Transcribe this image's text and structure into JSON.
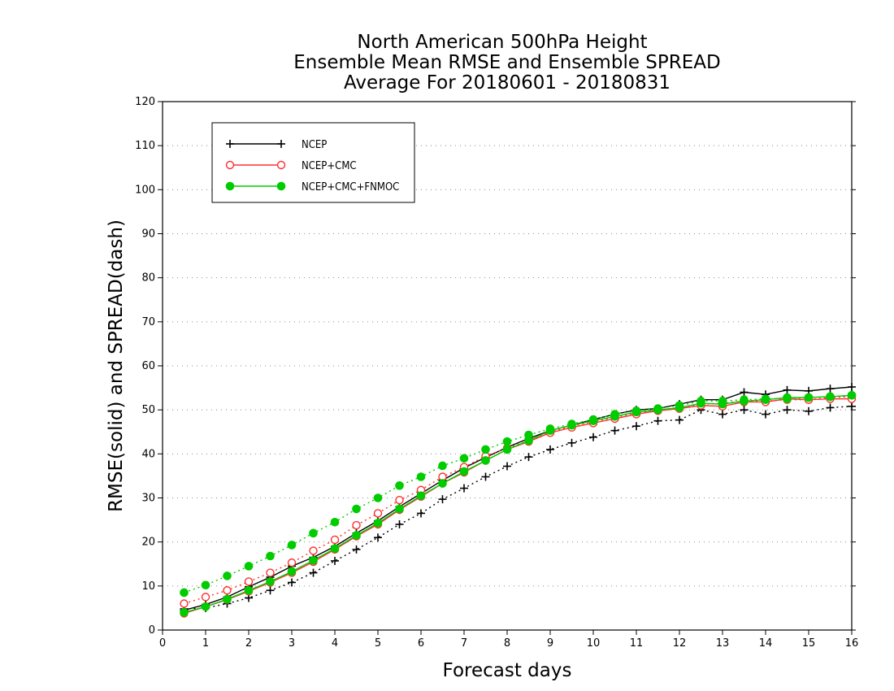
{
  "chart_data": {
    "type": "line",
    "title": [
      "North American 500hPa Height",
      "Ensemble Mean RMSE and Ensemble SPREAD",
      "Average For 20180601 - 20180831"
    ],
    "xlabel": "Forecast days",
    "ylabel": "RMSE(solid) and SPREAD(dash)",
    "xlim": [
      0,
      16
    ],
    "ylim": [
      0,
      120
    ],
    "xticks": [
      0,
      1,
      2,
      3,
      4,
      5,
      6,
      7,
      8,
      9,
      10,
      11,
      12,
      13,
      14,
      15,
      16
    ],
    "yticks": [
      0,
      10,
      20,
      30,
      40,
      50,
      60,
      70,
      80,
      90,
      100,
      110,
      120
    ],
    "grid": "horizontal dotted",
    "legend_position": "top-left",
    "x": [
      0.5,
      1.0,
      1.5,
      2.0,
      2.5,
      3.0,
      3.5,
      4.0,
      4.5,
      5.0,
      5.5,
      6.0,
      6.5,
      7.0,
      7.5,
      8.0,
      8.5,
      9.0,
      9.5,
      10.0,
      10.5,
      11.0,
      11.5,
      12.0,
      12.5,
      13.0,
      13.5,
      14.0,
      14.5,
      15.0,
      15.5,
      16.0
    ],
    "series": [
      {
        "name": "NCEP",
        "color": "#000000",
        "marker": "plus",
        "rmse": [
          4.5,
          5.8,
          7.5,
          9.8,
          12.0,
          14.5,
          16.5,
          19.0,
          22.0,
          24.8,
          28.0,
          31.0,
          34.0,
          36.8,
          39.2,
          41.5,
          43.5,
          45.3,
          46.5,
          47.8,
          49.0,
          50.0,
          50.3,
          51.3,
          52.3,
          52.3,
          54.0,
          53.5,
          54.5,
          54.3,
          54.8,
          55.2
        ],
        "spread": [
          4.8,
          5.0,
          6.0,
          7.3,
          9.0,
          10.8,
          13.0,
          15.7,
          18.3,
          21.0,
          24.0,
          26.5,
          29.7,
          32.2,
          34.8,
          37.2,
          39.3,
          41.0,
          42.5,
          43.8,
          45.3,
          46.3,
          47.5,
          47.7,
          50.0,
          49.0,
          50.0,
          49.0,
          50.0,
          49.7,
          50.5,
          50.8
        ]
      },
      {
        "name": "NCEP+CMC",
        "color": "#ff3030",
        "marker": "open-circle",
        "rmse": [
          3.8,
          5.3,
          6.9,
          8.8,
          10.8,
          13.0,
          15.5,
          18.3,
          21.3,
          24.0,
          27.3,
          30.3,
          33.3,
          35.8,
          38.5,
          41.0,
          42.8,
          44.8,
          46.0,
          47.0,
          48.0,
          49.0,
          49.8,
          50.3,
          51.0,
          50.8,
          51.8,
          51.8,
          52.5,
          52.3,
          52.5,
          52.5
        ],
        "spread": [
          6.0,
          7.5,
          9.0,
          11.0,
          13.0,
          15.3,
          18.0,
          20.5,
          23.8,
          26.5,
          29.5,
          31.8,
          34.8,
          37.0,
          39.5,
          41.3,
          43.0,
          45.0,
          46.3,
          47.3,
          48.3,
          49.3,
          49.8,
          50.3,
          51.3,
          51.5,
          52.0,
          52.0,
          52.3,
          52.3,
          52.8,
          53.0
        ]
      },
      {
        "name": "NCEP+CMC+FNMOC",
        "color": "#00cc00",
        "marker": "filled-circle",
        "rmse": [
          4.0,
          5.3,
          7.0,
          9.0,
          11.0,
          13.3,
          15.8,
          18.5,
          21.5,
          24.3,
          27.5,
          30.5,
          33.3,
          36.0,
          38.5,
          41.0,
          43.0,
          45.3,
          46.5,
          47.5,
          48.5,
          49.5,
          50.0,
          50.5,
          51.5,
          51.3,
          52.0,
          52.3,
          52.8,
          52.8,
          53.0,
          53.3
        ],
        "spread": [
          8.5,
          10.2,
          12.3,
          14.5,
          16.8,
          19.3,
          22.0,
          24.5,
          27.5,
          30.0,
          32.8,
          34.8,
          37.3,
          39.0,
          41.0,
          42.8,
          44.3,
          45.7,
          46.8,
          47.8,
          49.0,
          49.8,
          50.3,
          51.0,
          52.0,
          52.0,
          52.3,
          52.5,
          52.5,
          52.8,
          53.0,
          53.3
        ]
      }
    ]
  }
}
